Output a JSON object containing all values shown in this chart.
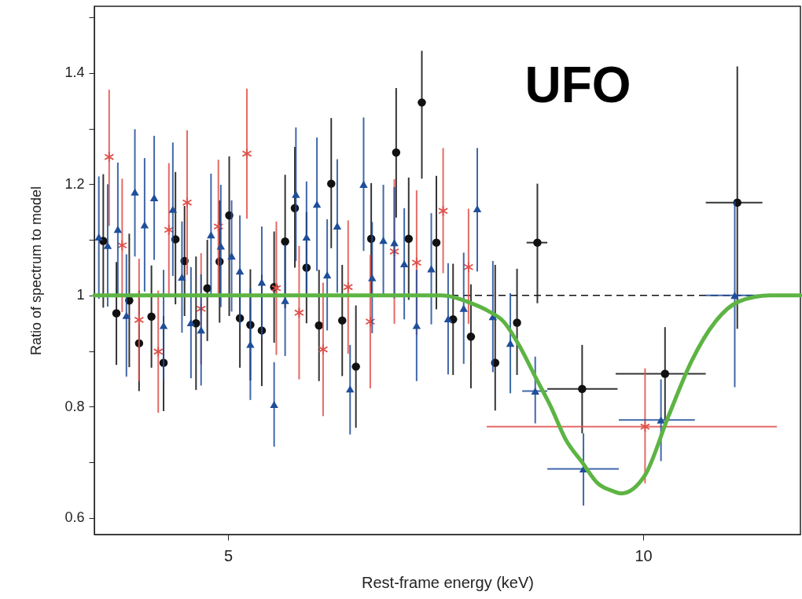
{
  "chart_data": {
    "type": "scatter",
    "xlabel": "Rest-frame energy (keV)",
    "ylabel": "Ratio of spectrum to model",
    "annotations": [
      "UFO"
    ],
    "log": "x",
    "xlim": [
      4,
      13
    ],
    "xticks": [
      5,
      10
    ],
    "ylim": [
      0.57,
      1.52
    ],
    "yticks": [
      0.6,
      {
        "value": 0.7,
        "label": null
      },
      0.8,
      {
        "value": 0.9,
        "label": null
      },
      1.0,
      {
        "value": 1.1,
        "label": null
      },
      1.2,
      {
        "value": 1.3,
        "label": null
      },
      1.4,
      {
        "value": 1.5,
        "label": null
      }
    ],
    "ref_lines": [
      {
        "axis": "y",
        "value": 1,
        "color": "#111111",
        "line_style": "dashed"
      }
    ],
    "series": [
      {
        "marker": "circle",
        "color": "#111111",
        "x": [
          4.06,
          4.15,
          4.24,
          4.31,
          4.4,
          4.49,
          4.58,
          4.65,
          4.74,
          4.83,
          4.93,
          5.01,
          5.1,
          5.19,
          5.29,
          5.4,
          5.5,
          5.59,
          5.7,
          5.82,
          5.94,
          6.05,
          6.19,
          6.35,
          6.62,
          6.76,
          6.91,
          7.08,
          7.28,
          7.5,
          7.81,
          8.1,
          8.38,
          9.03,
          10.37,
          11.7
        ],
        "values": [
          1.098,
          0.968,
          0.991,
          0.914,
          0.962,
          0.879,
          1.101,
          1.062,
          0.95,
          1.013,
          1.061,
          1.144,
          0.959,
          0.947,
          0.937,
          1.015,
          1.097,
          1.157,
          1.05,
          0.946,
          1.201,
          0.955,
          0.872,
          1.102,
          1.257,
          1.102,
          1.347,
          1.095,
          0.957,
          0.926,
          0.879,
          0.951,
          1.095,
          0.832,
          0.859,
          1.167
        ],
        "errors": [
          0.12,
          [
            0.875,
            1.06
          ],
          0.12,
          [
            0.828,
            1.009
          ],
          [
            0.87,
            1.054
          ],
          [
            0.792,
            0.963
          ],
          [
            0.984,
            1.222
          ],
          [
            0.963,
            1.161
          ],
          0.12,
          [
            0.918,
            1.1
          ],
          0.11,
          [
            0.963,
            1.25
          ],
          [
            0.87,
            1.04
          ],
          0.1,
          0.1,
          0.1,
          0.12,
          [
            1.05,
            1.267
          ],
          0.1,
          0.1,
          [
            1.085,
            1.319
          ],
          0.1,
          0.11,
          0.1,
          [
            1.14,
            1.373
          ],
          0.11,
          [
            1.21,
            1.44
          ],
          0.12,
          0.1,
          [
            0.833,
            1.02
          ],
          [
            0.793,
            1.055
          ],
          [
            0.857,
            1.048
          ],
          [
            0.986,
            1.201
          ],
          [
            0.752,
            0.911
          ],
          [
            0.776,
            0.943
          ],
          [
            0.94,
            1.412
          ]
        ],
        "xerrors": [
          null,
          null,
          null,
          null,
          null,
          null,
          null,
          null,
          null,
          null,
          null,
          null,
          null,
          null,
          null,
          null,
          null,
          null,
          null,
          null,
          null,
          null,
          null,
          null,
          null,
          null,
          null,
          null,
          null,
          null,
          null,
          null,
          [
            8.23,
            8.52
          ],
          [
            8.52,
            9.58
          ],
          [
            9.55,
            11.1
          ],
          [
            11.1,
            12.2
          ]
        ]
      },
      {
        "marker": "cross",
        "color": "#e0504a",
        "x": [
          4.1,
          4.19,
          4.31,
          4.45,
          4.53,
          4.67,
          4.78,
          4.92,
          5.16,
          5.42,
          5.63,
          5.86,
          6.11,
          6.34,
          6.6,
          6.85,
          7.16,
          7.47,
          10.03
        ],
        "values": [
          1.249,
          1.09,
          0.956,
          0.899,
          1.118,
          1.167,
          0.976,
          1.124,
          1.255,
          1.013,
          0.969,
          0.903,
          1.015,
          0.953,
          1.079,
          1.059,
          1.152,
          1.051,
          0.764
        ],
        "errors": [
          [
            1.125,
            1.37
          ],
          0.12,
          0.11,
          0.11,
          0.12,
          0.13,
          0.1,
          0.12,
          [
            1.138,
            1.372
          ],
          0.12,
          0.12,
          0.12,
          0.12,
          0.12,
          0.13,
          0.13,
          [
            1.04,
            1.265
          ],
          [
            0.949,
            1.156
          ],
          [
            0.662,
            0.869
          ]
        ],
        "xerrors": [
          null,
          null,
          null,
          null,
          null,
          null,
          null,
          null,
          null,
          null,
          null,
          null,
          null,
          null,
          null,
          null,
          null,
          null,
          [
            7.7,
            12.5
          ]
        ]
      },
      {
        "marker": "triangle",
        "color": "#1f4e9a",
        "x": [
          4.03,
          4.09,
          4.16,
          4.22,
          4.28,
          4.35,
          4.42,
          4.49,
          4.56,
          4.63,
          4.7,
          4.78,
          4.86,
          4.94,
          5.03,
          5.1,
          5.19,
          5.29,
          5.4,
          5.5,
          5.6,
          5.7,
          5.8,
          5.9,
          6.0,
          6.13,
          6.27,
          6.36,
          6.48,
          6.6,
          6.71,
          6.85,
          7.02,
          7.22,
          7.41,
          7.58,
          7.78,
          8.01,
          8.35,
          9.05,
          10.3,
          11.65
        ],
        "values": [
          1.105,
          1.09,
          1.119,
          0.964,
          1.186,
          1.127,
          1.176,
          0.946,
          1.155,
          1.033,
          0.951,
          0.938,
          1.109,
          1.089,
          1.071,
          1.044,
          0.912,
          1.024,
          0.804,
          0.991,
          1.182,
          1.105,
          1.164,
          1.037,
          1.125,
          0.832,
          1.2,
          1.032,
          1.099,
          1.095,
          1.057,
          0.946,
          1.048,
          0.958,
          0.977,
          1.156,
          0.962,
          0.914,
          0.828,
          0.688,
          0.776,
          1.0
        ],
        "errors": [
          [
            0.994,
            1.214
          ],
          0.11,
          0.12,
          0.11,
          [
            1.07,
            1.299
          ],
          0.12,
          [
            1.064,
            1.287
          ],
          0.1,
          0.12,
          0.1,
          0.1,
          0.1,
          0.11,
          0.11,
          0.1,
          0.1,
          0.1,
          0.1,
          [
            0.728,
            0.88
          ],
          0.1,
          0.12,
          0.1,
          0.12,
          0.1,
          0.12,
          [
            0.75,
            0.911
          ],
          0.12,
          0.1,
          0.1,
          0.1,
          0.1,
          0.1,
          0.1,
          0.1,
          0.1,
          [
            1.043,
            1.265
          ],
          0.1,
          0.09,
          [
            0.77,
            0.89
          ],
          [
            0.622,
            0.752
          ],
          [
            0.702,
            0.849
          ],
          [
            0.835,
            1.17
          ]
        ],
        "xerrors": [
          null,
          null,
          null,
          null,
          null,
          null,
          null,
          null,
          null,
          null,
          null,
          null,
          null,
          null,
          null,
          null,
          null,
          null,
          null,
          null,
          null,
          null,
          null,
          null,
          null,
          null,
          null,
          null,
          null,
          null,
          null,
          null,
          null,
          null,
          null,
          null,
          null,
          null,
          [
            8.17,
            8.52
          ],
          [
            8.52,
            9.6
          ],
          [
            9.6,
            10.9
          ],
          [
            11.1,
            12.2
          ]
        ]
      },
      {
        "type": "line",
        "marker": "none",
        "line_style": "solid",
        "color": "#5db443",
        "x": [
          4,
          7.13,
          7.52,
          7.72,
          7.92,
          8.13,
          8.35,
          8.57,
          8.79,
          9.03,
          9.27,
          9.51,
          9.64,
          10.03,
          10.43,
          10.84,
          11.28,
          11.73,
          12.36,
          13
        ],
        "values": [
          1,
          1,
          0.985,
          0.972,
          0.953,
          0.91,
          0.854,
          0.8,
          0.74,
          0.7,
          0.662,
          0.648,
          0.644,
          0.677,
          0.783,
          0.882,
          0.953,
          0.989,
          1,
          1
        ]
      }
    ]
  }
}
